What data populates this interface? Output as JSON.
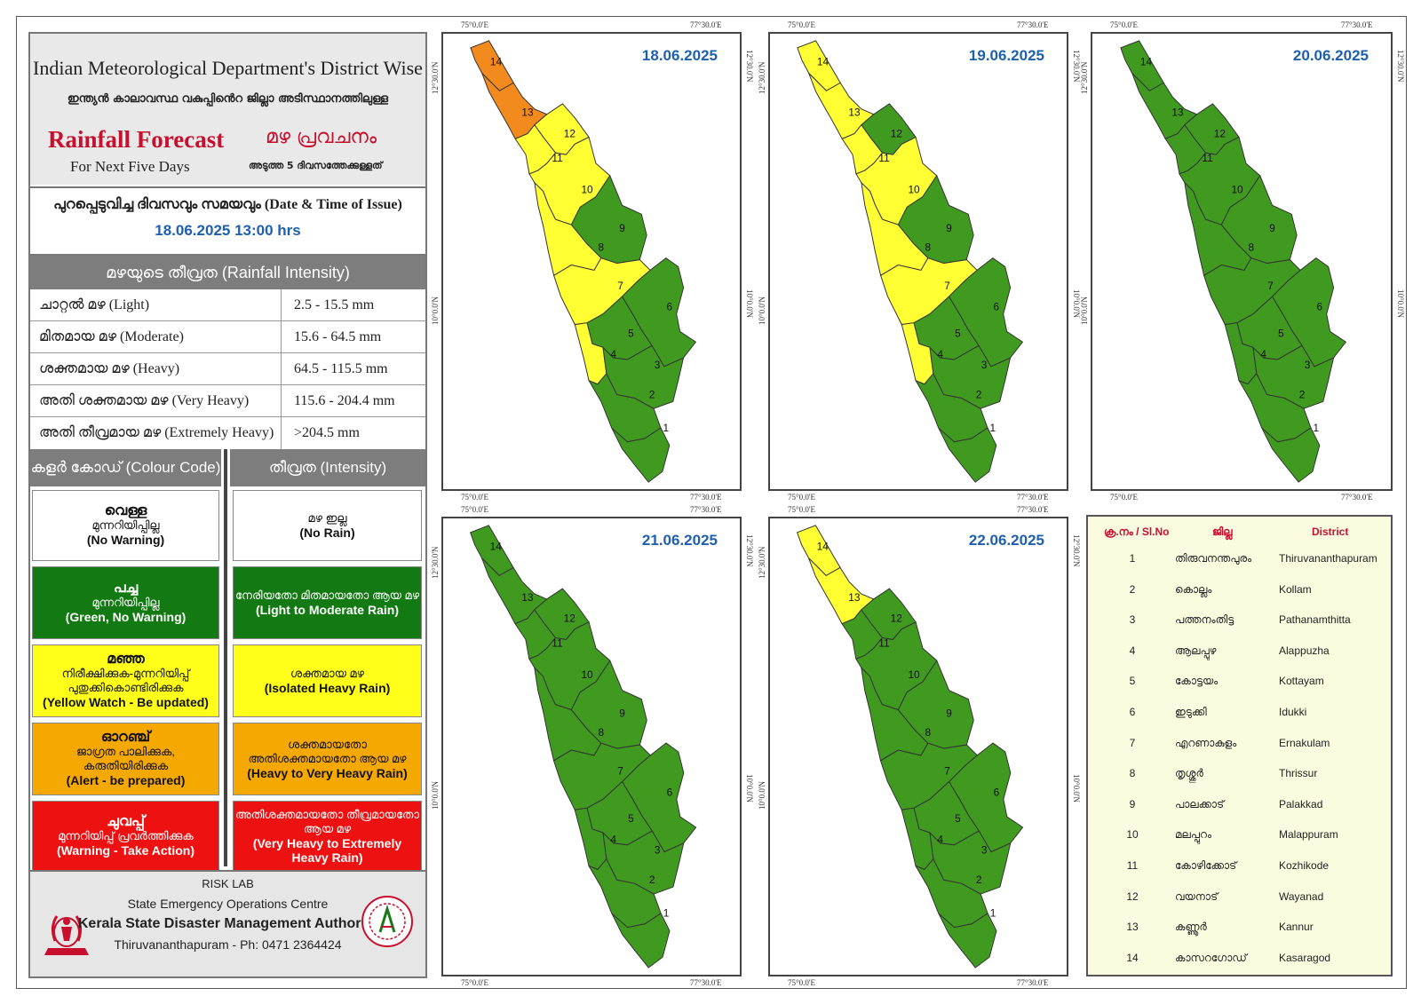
{
  "header": {
    "title_en": "Indian Meteorological Department's District Wise",
    "title_ml": "ഇന്ത്യൻ കാലാവസ്ഥ വകുപ്പിൻെറ ജില്ലാ അടിസ്ഥാനത്തിലുള്ള",
    "rainfall_forecast": "Rainfall Forecast",
    "rainfall_forecast_ml": "മഴ പ്രവചനം",
    "next_five_days": "For Next Five Days",
    "next_five_days_ml": "അടുത്ത 5 ദിവസത്തേക്കുള്ളത്"
  },
  "issue": {
    "label": "പുറപ്പെടുവിച്ച ദിവസവും സമയവും (Date & Time of Issue)",
    "datetime": "18.06.2025   13:00 hrs"
  },
  "intensity": {
    "header": "മഴയുടെ തീവ്രത (Rainfall Intensity)",
    "rows": [
      {
        "label": "ചാറ്റൽ മഴ (Light)",
        "range": "2.5 - 15.5 mm"
      },
      {
        "label": "മിതമായ മഴ (Moderate)",
        "range": "15.6 - 64.5 mm"
      },
      {
        "label": "ശക്തമായ മഴ (Heavy)",
        "range": "64.5 - 115.5 mm"
      },
      {
        "label": "അതി ശക്തമായ  മഴ  (Very Heavy)",
        "range": "115.6 - 204.4 mm"
      },
      {
        "label": "അതി തീവ്രമായ മഴ (Extremely Heavy)",
        "range": ">204.5 mm"
      }
    ]
  },
  "colour_code": {
    "header_left": "കളർ കോഡ് (Colour Code)",
    "header_right": "തീവ്രത (Intensity)",
    "items": [
      {
        "color": "#ffffff",
        "text_color": "#111111",
        "name": "വെള്ള",
        "desc": "മുന്നറിയിപ്പില്ല",
        "en": "(No Warning)",
        "int_ml": "മഴ ഇല്ല",
        "int_en": "(No Rain)"
      },
      {
        "color": "#137a13",
        "text_color": "#ffffff",
        "name": "പച്ച",
        "desc": "മുന്നറിയിപ്പില്ല",
        "en": "(Green, No Warning)",
        "int_ml": "നേരിയതോ മിതമായതോ ആയ മഴ",
        "int_en": "(Light to Moderate Rain)"
      },
      {
        "color": "#ffff1a",
        "text_color": "#111111",
        "name": "മഞ്ഞ",
        "desc": "നിരീക്ഷിക്കുക-മുന്നറിയിപ്പ് പുതുക്കികൊണ്ടിരിക്കുക",
        "en": "(Yellow Watch - Be updated)",
        "int_ml": "ശക്തമായ  മഴ",
        "int_en": "(Isolated Heavy Rain)"
      },
      {
        "color": "#f5a800",
        "text_color": "#111111",
        "name": "ഓറഞ്ച്",
        "desc": "ജാഗ്രത  പാലിക്കുക, കരുതിയിരിക്കുക",
        "en": "(Alert - be prepared)",
        "int_ml": "ശക്തമായതോ അതിശക്തമായതോ ആയ മഴ",
        "int_en": "(Heavy to Very Heavy Rain)"
      },
      {
        "color": "#ee1111",
        "text_color": "#ffffff",
        "name": "ചുവപ്പ്",
        "desc": "മുന്നറിയിപ്പ് പ്രവർത്തിക്കുക",
        "en": "(Warning - Take Action)",
        "int_ml": "അതിശക്തമായതോ തീവ്രമായതോ ആയ മഴ",
        "int_en": "(Very Heavy to Extremely Heavy Rain)"
      }
    ]
  },
  "footer": {
    "risk_lab": "RISK LAB",
    "seoc": "State Emergency Operations Centre",
    "ksdma": "Kerala State Disaster Management Authority",
    "address": "Thiruvananthapuram - Ph: 0471 2364424"
  },
  "coords": {
    "lon_left": "75°0.0'E",
    "lon_right": "77°30.0'E",
    "lat_top": "12°30.0'N",
    "lat_mid": "10°0.0'N"
  },
  "colors": {
    "green": "#3f9a1f",
    "yellow": "#ffff33",
    "orange": "#f38a1d",
    "outline": "#333333"
  },
  "maps": [
    {
      "date": "18.06.2025",
      "districts": {
        "1": "green",
        "2": "green",
        "3": "green",
        "4": "yellow",
        "5": "green",
        "6": "green",
        "7": "yellow",
        "8": "yellow",
        "9": "green",
        "10": "yellow",
        "11": "yellow",
        "12": "yellow",
        "13": "orange",
        "14": "orange"
      }
    },
    {
      "date": "19.06.2025",
      "districts": {
        "1": "green",
        "2": "green",
        "3": "green",
        "4": "yellow",
        "5": "green",
        "6": "green",
        "7": "yellow",
        "8": "yellow",
        "9": "green",
        "10": "yellow",
        "11": "yellow",
        "12": "green",
        "13": "yellow",
        "14": "yellow"
      }
    },
    {
      "date": "20.06.2025",
      "districts": {
        "1": "green",
        "2": "green",
        "3": "green",
        "4": "green",
        "5": "green",
        "6": "green",
        "7": "green",
        "8": "green",
        "9": "green",
        "10": "green",
        "11": "green",
        "12": "green",
        "13": "green",
        "14": "green"
      }
    },
    {
      "date": "21.06.2025",
      "districts": {
        "1": "green",
        "2": "green",
        "3": "green",
        "4": "green",
        "5": "green",
        "6": "green",
        "7": "green",
        "8": "green",
        "9": "green",
        "10": "green",
        "11": "green",
        "12": "green",
        "13": "green",
        "14": "green"
      }
    },
    {
      "date": "22.06.2025",
      "districts": {
        "1": "green",
        "2": "green",
        "3": "green",
        "4": "green",
        "5": "green",
        "6": "green",
        "7": "green",
        "8": "green",
        "9": "green",
        "10": "green",
        "11": "green",
        "12": "green",
        "13": "yellow",
        "14": "yellow"
      }
    }
  ],
  "district_table": {
    "headers": [
      "ക്ര.നം / Sl.No",
      "ജില്ല",
      "District"
    ],
    "rows": [
      {
        "no": "1",
        "ml": "തിരുവനന്തപുരം",
        "en": "Thiruvananthapuram"
      },
      {
        "no": "2",
        "ml": "കൊല്ലം",
        "en": "Kollam"
      },
      {
        "no": "3",
        "ml": "പത്തനംതിട്ട",
        "en": "Pathanamthitta"
      },
      {
        "no": "4",
        "ml": "ആലപ്പുഴ",
        "en": "Alappuzha"
      },
      {
        "no": "5",
        "ml": "കോട്ടയം",
        "en": "Kottayam"
      },
      {
        "no": "6",
        "ml": "ഇടുക്കി",
        "en": "Idukki"
      },
      {
        "no": "7",
        "ml": "എറണാകുളം",
        "en": "Ernakulam"
      },
      {
        "no": "8",
        "ml": "തൃശ്ശൂർ",
        "en": "Thrissur"
      },
      {
        "no": "9",
        "ml": "പാലക്കാട്",
        "en": "Palakkad"
      },
      {
        "no": "10",
        "ml": "മലപ്പുറം",
        "en": "Malappuram"
      },
      {
        "no": "11",
        "ml": "കോഴിക്കോട്",
        "en": "Kozhikode"
      },
      {
        "no": "12",
        "ml": "വയനാട്",
        "en": "Wayanad"
      },
      {
        "no": "13",
        "ml": "കണ്ണൂർ",
        "en": "Kannur"
      },
      {
        "no": "14",
        "ml": "കാസറഗോഡ്",
        "en": "Kasaragod"
      }
    ]
  }
}
